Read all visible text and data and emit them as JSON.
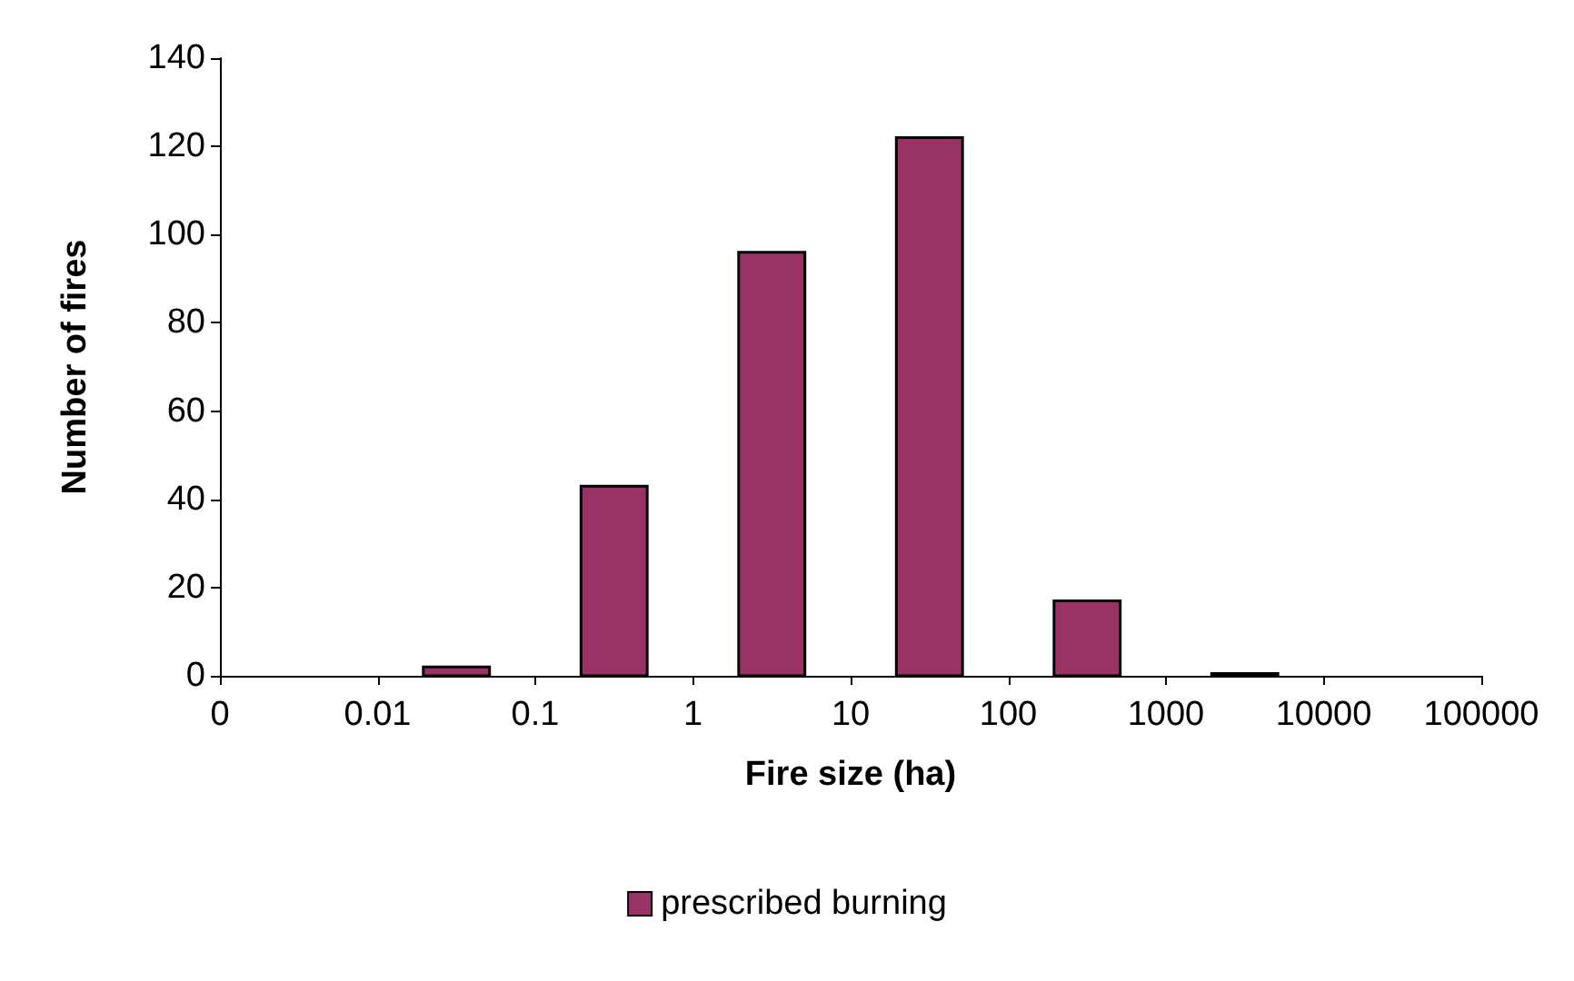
{
  "chart_data": {
    "type": "histogram",
    "xlabel": "Fire size (ha)",
    "ylabel": "Number of fires",
    "bins": [
      0.001,
      0.01,
      0.1,
      1,
      10,
      100,
      1000,
      10000,
      100000
    ],
    "series": [
      {
        "name": "prescribed burning",
        "color": "#993366",
        "values": [
          0,
          2,
          43,
          96,
          122,
          17,
          0.5,
          0
        ]
      }
    ],
    "log": "x",
    "xlim": [
      0.001,
      100000
    ],
    "xticks": [
      {
        "value": 0.001,
        "label": "0"
      },
      0.01,
      0.1,
      1,
      10,
      100,
      1000,
      10000,
      100000
    ],
    "ylim": [
      0,
      140
    ],
    "yticks": [
      0,
      20,
      40,
      60,
      80,
      100,
      120,
      140
    ],
    "legend": "bottom"
  }
}
